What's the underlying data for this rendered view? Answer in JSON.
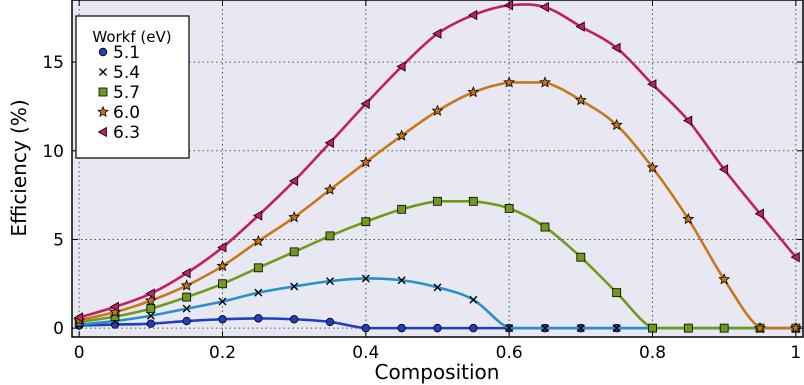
{
  "chart_data": {
    "type": "line",
    "xlabel": "Composition",
    "ylabel": "Efficiency (%)",
    "xlim": [
      -0.01,
      1.01
    ],
    "ylim": [
      -0.5,
      18.5
    ],
    "xticks": [
      0,
      0.2,
      0.4,
      0.6,
      0.8,
      1
    ],
    "xtick_labels": [
      "0",
      "0.2",
      "0.4",
      "0.6",
      "0.8",
      "1"
    ],
    "yticks": [
      0,
      5,
      10,
      15
    ],
    "ytick_labels": [
      "0",
      "5",
      "10",
      "15"
    ],
    "grid": true,
    "legend": {
      "title": "Workf (eV)",
      "placement": "top-left"
    },
    "x": [
      0,
      0.05,
      0.1,
      0.15,
      0.2,
      0.25,
      0.3,
      0.35,
      0.4,
      0.45,
      0.5,
      0.55,
      0.6,
      0.65,
      0.7,
      0.75,
      0.8,
      0.85,
      0.9,
      0.95,
      1.0
    ],
    "series": [
      {
        "name": "5.1",
        "color": "#1f3fbf",
        "marker": "circle",
        "values": [
          0.15,
          0.2,
          0.25,
          0.4,
          0.5,
          0.55,
          0.5,
          0.35,
          0,
          0,
          0,
          0,
          0,
          0,
          0,
          0,
          0,
          0,
          0,
          0,
          0
        ]
      },
      {
        "name": "5.4",
        "color": "#2a8fc9",
        "marker": "x",
        "values": [
          0.2,
          0.4,
          0.7,
          1.1,
          1.5,
          2.0,
          2.35,
          2.65,
          2.8,
          2.7,
          2.3,
          1.6,
          0,
          0,
          0,
          0,
          0,
          0,
          0,
          0,
          0
        ]
      },
      {
        "name": "5.7",
        "color": "#6f9a1a",
        "marker": "square",
        "values": [
          0.35,
          0.65,
          1.1,
          1.75,
          2.5,
          3.4,
          4.3,
          5.2,
          6.0,
          6.7,
          7.15,
          7.15,
          6.75,
          5.7,
          4.0,
          2.0,
          0,
          0,
          0,
          0,
          0
        ]
      },
      {
        "name": "6.0",
        "color": "#c9761a",
        "marker": "star",
        "values": [
          0.45,
          0.9,
          1.55,
          2.4,
          3.5,
          4.9,
          6.25,
          7.8,
          9.35,
          10.85,
          12.25,
          13.3,
          13.85,
          13.85,
          12.85,
          11.45,
          9.05,
          6.15,
          2.75,
          0,
          0
        ]
      },
      {
        "name": "6.3",
        "color": "#c21e63",
        "marker": "triangle-left",
        "values": [
          0.6,
          1.2,
          1.95,
          3.1,
          4.55,
          6.35,
          8.3,
          10.45,
          12.65,
          14.75,
          16.6,
          17.65,
          18.2,
          18.1,
          17.0,
          15.8,
          13.75,
          11.7,
          8.95,
          6.45,
          4.0
        ]
      }
    ]
  }
}
